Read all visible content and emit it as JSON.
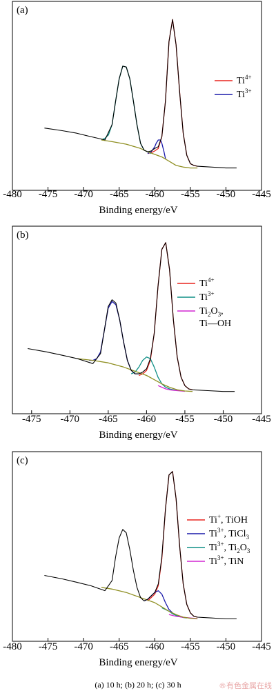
{
  "caption": "(a) 10 h; (b) 20 h; (c) 30 h",
  "watermark": "®有色金属在线",
  "colors": {
    "red": "#e8251f",
    "blue": "#1a1aaa",
    "teal": "#0f8f86",
    "magenta": "#d226d2",
    "olive": "#8f8f22",
    "black": "#000000"
  },
  "chart_data": [
    {
      "type": "line",
      "panel_label": "(a)",
      "xlabel": "Binding energy/eV",
      "ylabel": "",
      "xlim": [
        -480,
        -445
      ],
      "ylim": [
        0,
        100
      ],
      "xticks": [
        -480,
        -475,
        -470,
        -465,
        -460,
        -455,
        -450,
        -445
      ],
      "legend_position": "right",
      "series": [
        {
          "name": "",
          "role": "raw data",
          "color": "#000000",
          "x": [
            -475.5,
            -473,
            -471,
            -469,
            -467,
            -466,
            -465.5,
            -465,
            -464.5,
            -464,
            -463.5,
            -463,
            -462.5,
            -462,
            -461.5,
            -461,
            -460.5,
            -460,
            -459.5,
            -459,
            -458.5,
            -458,
            -457.5,
            -457,
            -456.5,
            -456,
            -455.5,
            -455,
            -454.5,
            -454,
            -452,
            -450,
            -448.5
          ],
          "y": [
            31,
            29.5,
            28,
            26,
            24,
            33,
            47,
            60,
            67.5,
            67,
            60,
            47,
            33,
            22,
            18,
            17,
            17.5,
            19,
            20,
            26,
            47,
            82,
            95,
            80,
            52,
            28,
            15,
            10,
            9,
            8.5,
            8,
            7.5,
            7.5
          ]
        },
        {
          "name": "Ti4+",
          "color": "#e8251f",
          "x": [
            -461,
            -460.5,
            -460,
            -459.5,
            -459,
            -458.5,
            -458,
            -457.5,
            -457,
            -456.5,
            -456,
            -455.5,
            -455,
            -454.5,
            -454
          ],
          "y": [
            16,
            16.5,
            17.5,
            19,
            26,
            47,
            82,
            95,
            80,
            52,
            28,
            15,
            10,
            9,
            8.5
          ]
        },
        {
          "name": "Ti3+",
          "color": "#1a1aaa",
          "x": [
            -461,
            -460.5,
            -460,
            -459.8,
            -459.5,
            -459.2,
            -459,
            -458.7,
            -458.5
          ],
          "y": [
            16,
            17,
            20,
            22,
            24,
            24,
            22,
            17,
            13
          ]
        },
        {
          "name": "",
          "role": "Ti3+ 2p1/2 fit",
          "color": "#0f8f86",
          "x": [
            -467.5,
            -467,
            -466.5,
            -466,
            -465.5,
            -465,
            -464.5,
            -464,
            -463.5,
            -463,
            -462.5,
            -462,
            -461.5,
            -461,
            -460.5
          ],
          "y": [
            24,
            25,
            27,
            33,
            47,
            60,
            67.5,
            67,
            60,
            47,
            33,
            22,
            18,
            17,
            16
          ]
        },
        {
          "name": "",
          "role": "background",
          "color": "#8f8f22",
          "x": [
            -467.5,
            -466,
            -464,
            -462,
            -461,
            -460,
            -459,
            -458,
            -457,
            -456,
            -455,
            -454
          ],
          "y": [
            24,
            23,
            21.5,
            19,
            17,
            15.5,
            14,
            11.5,
            9,
            8,
            7.5,
            7.5
          ]
        }
      ]
    },
    {
      "type": "line",
      "panel_label": "(b)",
      "xlabel": "Binding energy/eV",
      "ylabel": "",
      "xlim": [
        -477.5,
        -445
      ],
      "ylim": [
        0,
        100
      ],
      "xticks": [
        -475,
        -470,
        -465,
        -460,
        -455,
        -450,
        -445
      ],
      "legend_position": "right",
      "series": [
        {
          "name": "",
          "role": "raw data",
          "color": "#000000",
          "x": [
            -475.5,
            -473,
            -471,
            -469,
            -467,
            -466,
            -465.5,
            -465,
            -464.5,
            -464,
            -463.5,
            -463,
            -462.5,
            -462,
            -461.5,
            -461,
            -460.5,
            -460,
            -459.5,
            -459,
            -458.5,
            -458,
            -457.5,
            -457,
            -456.5,
            -456,
            -455.5,
            -455,
            -454.5,
            -454,
            -452,
            -450,
            -448.5
          ],
          "y": [
            33,
            31,
            29,
            27,
            24,
            30,
            44,
            58,
            62,
            60,
            50,
            37,
            26,
            20,
            18,
            18,
            19,
            21,
            27,
            42,
            70,
            92,
            96,
            80,
            50,
            28,
            16,
            11,
            9,
            8.5,
            8,
            7.5,
            7.5
          ]
        },
        {
          "name": "Ti4+",
          "color": "#e8251f",
          "x": [
            -461,
            -460.5,
            -460,
            -459.5,
            -459,
            -458.5,
            -458,
            -457.5,
            -457,
            -456.5,
            -456,
            -455.5,
            -455,
            -454.5,
            -454
          ],
          "y": [
            17,
            18,
            20,
            26,
            42,
            70,
            92,
            96,
            80,
            50,
            28,
            16,
            11,
            9,
            8.5
          ]
        },
        {
          "name": "Ti3+",
          "color": "#0f8f86",
          "x": [
            -462,
            -461.5,
            -461,
            -460.5,
            -460,
            -459.5,
            -459,
            -458.5,
            -458,
            -457.5,
            -457,
            -456.5,
            -456
          ],
          "y": [
            18,
            19,
            22,
            26,
            28,
            27,
            22,
            16,
            12,
            10,
            9,
            8.5,
            8
          ]
        },
        {
          "name": "Ti2O3,",
          "name_line2": "Ti—OH",
          "color": "#d226d2",
          "x": [
            -458.5,
            -458,
            -457.5,
            -457,
            -456.5,
            -456,
            -455.5,
            -455
          ],
          "y": [
            11,
            10,
            9,
            8.5,
            8.2,
            8,
            7.8,
            7.6
          ]
        },
        {
          "name": "",
          "role": "Ti3+ 2p1/2 fit",
          "color": "#1a1aaa",
          "x": [
            -467.5,
            -467,
            -466.5,
            -466,
            -465.5,
            -465,
            -464.5,
            -464,
            -463.5,
            -463,
            -462.5,
            -462,
            -461.5,
            -461
          ],
          "y": [
            26,
            26,
            27,
            31,
            44,
            57,
            61,
            59,
            50,
            37,
            26,
            20,
            18,
            18
          ]
        },
        {
          "name": "",
          "role": "background",
          "color": "#8f8f22",
          "x": [
            -469,
            -467,
            -465,
            -463,
            -461.5,
            -460,
            -459,
            -458,
            -457,
            -456,
            -455,
            -454
          ],
          "y": [
            27,
            26,
            24.5,
            22,
            19.5,
            17,
            14.5,
            12,
            10,
            8.5,
            7.8,
            7.5
          ]
        }
      ]
    },
    {
      "type": "line",
      "panel_label": "(c)",
      "xlabel": "Binding energy/eV",
      "ylabel": "",
      "xlim": [
        -480,
        -445
      ],
      "ylim": [
        0,
        100
      ],
      "xticks": [
        -480,
        -475,
        -470,
        -465,
        -460,
        -455,
        -450,
        -445
      ],
      "legend_position": "right",
      "series": [
        {
          "name": "",
          "role": "raw data",
          "color": "#000000",
          "x": [
            -475.5,
            -473,
            -471,
            -469,
            -467,
            -466,
            -465.5,
            -465,
            -464.5,
            -464,
            -463.5,
            -463,
            -462.5,
            -462,
            -461.5,
            -461,
            -460.5,
            -460,
            -459.5,
            -459,
            -458.5,
            -458,
            -457.5,
            -457,
            -456.5,
            -456,
            -455.5,
            -455,
            -454.5,
            -454,
            -452,
            -450,
            -448.5
          ],
          "y": [
            33,
            31,
            29,
            27,
            24,
            30,
            44,
            55,
            60,
            58,
            48,
            36,
            26,
            20,
            18,
            19,
            21,
            23,
            28,
            44,
            72,
            92,
            94,
            78,
            50,
            28,
            16,
            11,
            9,
            8.5,
            8,
            7.5,
            7.5
          ]
        },
        {
          "name": "Ti+, TiOH",
          "color": "#e8251f",
          "x": [
            -461,
            -460.5,
            -460,
            -459.5,
            -459,
            -458.5,
            -458,
            -457.5,
            -457,
            -456.5,
            -456,
            -455.5,
            -455,
            -454.5,
            -454
          ],
          "y": [
            18,
            20,
            22,
            27,
            43,
            72,
            92,
            94,
            78,
            50,
            28,
            16,
            11,
            9,
            8.5
          ]
        },
        {
          "name": "Ti3+, TiCl3",
          "color": "#1a1aaa",
          "x": [
            -461.5,
            -461,
            -460.5,
            -460,
            -459.5,
            -459,
            -458.5,
            -458,
            -457.5
          ],
          "y": [
            18,
            19,
            21,
            23,
            24,
            22,
            17,
            13,
            11
          ]
        },
        {
          "name": "Ti3+, Ti2O3",
          "color": "#0f8f86",
          "x": [
            -459,
            -458.5,
            -458,
            -457.5,
            -457,
            -456.5,
            -456,
            -455.5
          ],
          "y": [
            14,
            13,
            12,
            10.5,
            9.5,
            8.8,
            8.3,
            8
          ]
        },
        {
          "name": "Ti3+, TiN",
          "color": "#d226d2",
          "x": [
            -458,
            -457.5,
            -457,
            -456.5,
            -456,
            -455.5,
            -455,
            -454.5,
            -454
          ],
          "y": [
            10,
            9.5,
            9,
            8.7,
            8.4,
            8.2,
            8,
            7.8,
            7.6
          ]
        },
        {
          "name": "",
          "role": "background",
          "color": "#8f8f22",
          "x": [
            -467.5,
            -466,
            -464,
            -462,
            -461,
            -460,
            -459,
            -458,
            -457,
            -456,
            -455,
            -454
          ],
          "y": [
            26,
            25,
            23,
            20,
            18.5,
            17,
            14.5,
            12,
            10,
            8.5,
            7.8,
            7.5
          ]
        }
      ]
    }
  ]
}
